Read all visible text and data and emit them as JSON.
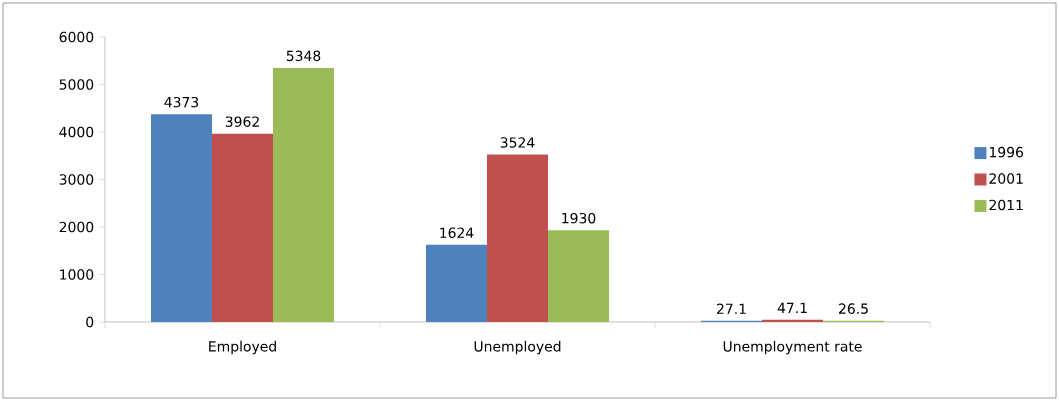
{
  "chart_data": {
    "type": "bar",
    "categories": [
      "Employed",
      "Unemployed",
      "Unemployment rate"
    ],
    "series": [
      {
        "name": "1996",
        "color": "#4f81bd",
        "values": [
          4373,
          1624,
          27.1
        ]
      },
      {
        "name": "2001",
        "color": "#c0504d",
        "values": [
          3962,
          3524,
          47.1
        ]
      },
      {
        "name": "2011",
        "color": "#9bbb59",
        "values": [
          5348,
          1930,
          26.5
        ]
      }
    ],
    "ylim": [
      0,
      6000
    ],
    "yticks": [
      0,
      1000,
      2000,
      3000,
      4000,
      5000,
      6000
    ],
    "grid": false,
    "legend": "right",
    "data_labels": true
  }
}
